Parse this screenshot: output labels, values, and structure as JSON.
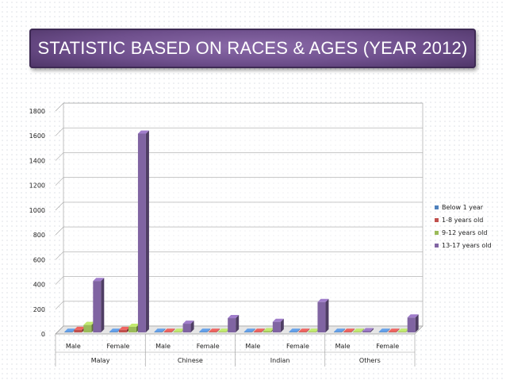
{
  "title": "STATISTIC BASED ON RACES & AGES (YEAR 2012)",
  "colors": {
    "below_1": "#4f81bd",
    "age_1_8": "#c0504d",
    "age_9_12": "#9bbb59",
    "age_13_17": "#8064a2"
  },
  "chart_data": {
    "type": "bar",
    "groups": [
      "Malay",
      "Chinese",
      "Indian",
      "Others"
    ],
    "categories": [
      "Male",
      "Female",
      "Male",
      "Female",
      "Male",
      "Female",
      "Male",
      "Female"
    ],
    "series": [
      {
        "name": "Below 1 year",
        "values": [
          5,
          5,
          5,
          5,
          5,
          5,
          5,
          5
        ]
      },
      {
        "name": "1-8 years old",
        "values": [
          20,
          20,
          5,
          5,
          5,
          5,
          5,
          5
        ]
      },
      {
        "name": "9-12 years old",
        "values": [
          60,
          45,
          5,
          5,
          10,
          5,
          5,
          5
        ]
      },
      {
        "name": "13-17 years old",
        "values": [
          415,
          1605,
          70,
          115,
          85,
          245,
          10,
          120
        ]
      }
    ],
    "yticks": [
      0,
      200,
      400,
      600,
      800,
      1000,
      1200,
      1400,
      1600,
      1800
    ],
    "ylim": [
      0,
      1800
    ],
    "grid": true,
    "legend": "right"
  }
}
